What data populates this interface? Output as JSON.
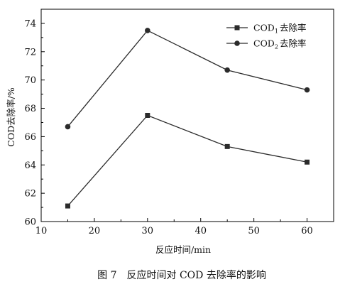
{
  "chart_data": {
    "type": "line",
    "x": [
      15,
      30,
      45,
      60
    ],
    "series": [
      {
        "name": "COD1去除率",
        "legend_main": "COD",
        "legend_sub": "1",
        "legend_suffix": "去除率",
        "marker": "square",
        "values": [
          61.1,
          67.5,
          65.3,
          64.2
        ]
      },
      {
        "name": "COD2去除率",
        "legend_main": "COD",
        "legend_sub": "2",
        "legend_suffix": "去除率",
        "marker": "circle",
        "values": [
          66.7,
          73.5,
          70.7,
          69.3
        ]
      }
    ],
    "xlabel": "反应时间/min",
    "ylabel": "COD去除率/%",
    "xlim": [
      10,
      65
    ],
    "ylim": [
      60,
      75
    ],
    "xticks": [
      10,
      20,
      30,
      40,
      50,
      60
    ],
    "yticks": [
      60,
      62,
      64,
      66,
      68,
      70,
      72,
      74
    ],
    "legend_position": "top-right",
    "grid": false
  },
  "caption": "图 7　反应时间对 COD 去除率的影响",
  "colors": {
    "line": "#2b2b2b",
    "axis": "#000000"
  }
}
